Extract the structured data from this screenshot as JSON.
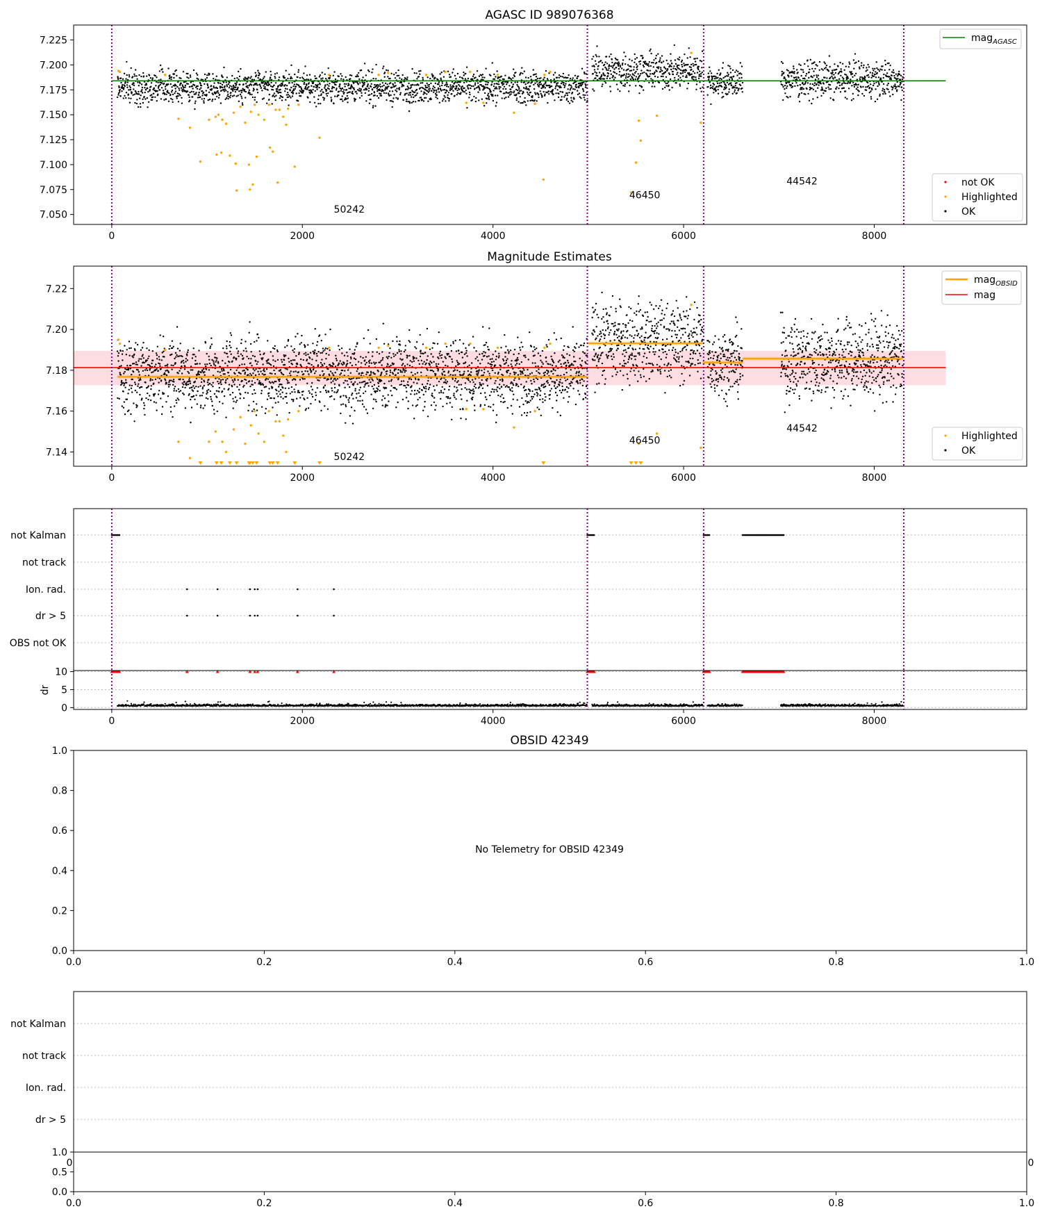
{
  "colors": {
    "ok": "#000000",
    "highlighted": "#ffa500",
    "not_ok": "#ff0000",
    "agasc_line": "#008000",
    "mag_line": "#ff0000",
    "obsid_line": "#ffa500",
    "band": "#ffc0cb",
    "vline": "#800080",
    "grid": "#bbbbbb"
  },
  "chart_data": [
    {
      "id": "agasc",
      "type": "scatter",
      "title": "AGASC ID 989076368",
      "xlim": [
        -400,
        9600
      ],
      "ylim": [
        7.04,
        7.24
      ],
      "xticks": [
        0,
        2000,
        4000,
        6000,
        8000
      ],
      "yticks": [
        7.05,
        7.075,
        7.1,
        7.125,
        7.15,
        7.175,
        7.2,
        7.225
      ],
      "ytick_labels": [
        "7.050",
        "7.075",
        "7.100",
        "7.125",
        "7.150",
        "7.175",
        "7.200",
        "7.225"
      ],
      "obsid_boundaries": [
        0,
        4990,
        6210,
        8310
      ],
      "obsid_labels": [
        {
          "text": "50242",
          "x": 2330,
          "y": 7.052
        },
        {
          "text": "46450",
          "x": 5430,
          "y": 7.066
        },
        {
          "text": "44542",
          "x": 7080,
          "y": 7.08
        }
      ],
      "mag_agasc": {
        "value": 7.184,
        "x": [
          0,
          8750
        ]
      },
      "series": [
        {
          "name": "OK",
          "segments": [
            {
              "x": [
                60,
                4990
              ],
              "center": 7.178,
              "spread": 0.008
            },
            {
              "x": [
                5040,
                6200
              ],
              "center": 7.194,
              "spread": 0.009
            },
            {
              "x": [
                6250,
                6620
              ],
              "center": 7.183,
              "spread": 0.008
            },
            {
              "x": [
                7020,
                8300
              ],
              "center": 7.185,
              "spread": 0.009
            }
          ]
        },
        {
          "name": "Highlighted",
          "points": [
            [
              70,
              7.194
            ],
            [
              85,
              7.193
            ],
            [
              560,
              7.19
            ],
            [
              700,
              7.146
            ],
            [
              820,
              7.137
            ],
            [
              930,
              7.103
            ],
            [
              1020,
              7.145
            ],
            [
              1090,
              7.148
            ],
            [
              1100,
              7.11
            ],
            [
              1120,
              7.15
            ],
            [
              1150,
              7.112
            ],
            [
              1160,
              7.145
            ],
            [
              1200,
              7.141
            ],
            [
              1240,
              7.109
            ],
            [
              1280,
              7.152
            ],
            [
              1300,
              7.101
            ],
            [
              1310,
              7.074
            ],
            [
              1350,
              7.158
            ],
            [
              1400,
              7.142
            ],
            [
              1440,
              7.1
            ],
            [
              1450,
              7.075
            ],
            [
              1460,
              7.153
            ],
            [
              1480,
              7.08
            ],
            [
              1500,
              7.16
            ],
            [
              1520,
              7.108
            ],
            [
              1540,
              7.15
            ],
            [
              1600,
              7.145
            ],
            [
              1650,
              7.16
            ],
            [
              1660,
              7.117
            ],
            [
              1690,
              7.113
            ],
            [
              1720,
              7.155
            ],
            [
              1740,
              7.082
            ],
            [
              1760,
              7.155
            ],
            [
              1800,
              7.148
            ],
            [
              1830,
              7.14
            ],
            [
              1850,
              7.156
            ],
            [
              1920,
              7.098
            ],
            [
              1960,
              7.16
            ],
            [
              2180,
              7.127
            ],
            [
              2280,
              7.19
            ],
            [
              2800,
              7.19
            ],
            [
              2900,
              7.192
            ],
            [
              3300,
              7.19
            ],
            [
              3500,
              7.193
            ],
            [
              3720,
              7.162
            ],
            [
              3760,
              7.193
            ],
            [
              3900,
              7.162
            ],
            [
              4050,
              7.19
            ],
            [
              4220,
              7.152
            ],
            [
              4440,
              7.161
            ],
            [
              4530,
              7.085
            ],
            [
              4540,
              7.19
            ],
            [
              4600,
              7.193
            ],
            [
              5450,
              7.072
            ],
            [
              5500,
              7.102
            ],
            [
              5530,
              7.144
            ],
            [
              5550,
              7.124
            ],
            [
              5720,
              7.149
            ],
            [
              6080,
              7.212
            ],
            [
              6180,
              7.142
            ]
          ]
        },
        {
          "name": "not OK",
          "points": []
        }
      ],
      "legend_lines": [
        {
          "name": "mag_AGASC",
          "label_main": "mag",
          "label_sub": "AGASC",
          "color": "#008000"
        }
      ],
      "legend_markers": [
        "not OK",
        "Highlighted",
        "OK"
      ]
    },
    {
      "id": "estimates",
      "type": "scatter",
      "title": "Magnitude Estimates",
      "xlim": [
        -400,
        9600
      ],
      "ylim": [
        7.133,
        7.231
      ],
      "xticks": [
        0,
        2000,
        4000,
        6000,
        8000
      ],
      "yticks": [
        7.14,
        7.16,
        7.18,
        7.2,
        7.22
      ],
      "ytick_labels": [
        "7.14",
        "7.16",
        "7.18",
        "7.20",
        "7.22"
      ],
      "obsid_boundaries": [
        0,
        4990,
        6210,
        8310
      ],
      "obsid_labels": [
        {
          "text": "50242",
          "x": 2330,
          "y": 7.136
        },
        {
          "text": "46450",
          "x": 5430,
          "y": 7.144
        },
        {
          "text": "44542",
          "x": 7080,
          "y": 7.15
        }
      ],
      "mag": {
        "value": 7.1813,
        "band": [
          7.1727,
          7.1895
        ],
        "x": [
          -400,
          8750
        ]
      },
      "mag_obsid": [
        {
          "x": [
            60,
            4990
          ],
          "value": 7.1768,
          "band": [
            7.1758,
            7.1778
          ]
        },
        {
          "x": [
            4990,
            6200
          ],
          "value": 7.1932,
          "band": [
            7.192,
            7.1944
          ]
        },
        {
          "x": [
            6200,
            6620
          ],
          "value": 7.1838,
          "band": [
            7.183,
            7.1846
          ]
        },
        {
          "x": [
            6620,
            8300
          ],
          "value": 7.1857,
          "band": [
            7.1848,
            7.1866
          ]
        }
      ],
      "series": [
        {
          "name": "OK",
          "segments": [
            {
              "x": [
                60,
                4990
              ],
              "center": 7.178,
              "spread": 0.0085
            },
            {
              "x": [
                5040,
                6200
              ],
              "center": 7.194,
              "spread": 0.0095
            },
            {
              "x": [
                6250,
                6620
              ],
              "center": 7.184,
              "spread": 0.008
            },
            {
              "x": [
                7020,
                8300
              ],
              "center": 7.185,
              "spread": 0.0095
            }
          ]
        },
        {
          "name": "Highlighted",
          "points": [
            [
              70,
              7.195
            ],
            [
              85,
              7.193
            ],
            [
              560,
              7.19
            ],
            [
              700,
              7.145
            ],
            [
              820,
              7.137
            ],
            [
              1020,
              7.145
            ],
            [
              1090,
              7.15
            ],
            [
              1160,
              7.145
            ],
            [
              1200,
              7.14
            ],
            [
              1280,
              7.151
            ],
            [
              1350,
              7.157
            ],
            [
              1400,
              7.144
            ],
            [
              1460,
              7.153
            ],
            [
              1500,
              7.16
            ],
            [
              1540,
              7.149
            ],
            [
              1600,
              7.145
            ],
            [
              1650,
              7.16
            ],
            [
              1720,
              7.155
            ],
            [
              1760,
              7.155
            ],
            [
              1800,
              7.148
            ],
            [
              1830,
              7.14
            ],
            [
              1850,
              7.156
            ],
            [
              1960,
              7.16
            ],
            [
              2280,
              7.191
            ],
            [
              2800,
              7.191
            ],
            [
              2900,
              7.192
            ],
            [
              3300,
              7.191
            ],
            [
              3500,
              7.193
            ],
            [
              3720,
              7.161
            ],
            [
              3760,
              7.193
            ],
            [
              3900,
              7.161
            ],
            [
              4050,
              7.191
            ],
            [
              4220,
              7.152
            ],
            [
              4440,
              7.16
            ],
            [
              4540,
              7.191
            ],
            [
              4600,
              7.193
            ],
            [
              5530,
              7.144
            ],
            [
              5720,
              7.149
            ],
            [
              6080,
              7.212
            ],
            [
              6180,
              7.142
            ]
          ]
        },
        {
          "name": "Highlighted-below-range",
          "markers": "down-triangle",
          "x": [
            930,
            1100,
            1150,
            1240,
            1310,
            1440,
            1450,
            1480,
            1520,
            1660,
            1690,
            1740,
            1920,
            2180,
            4530,
            5450,
            5500,
            5550
          ]
        }
      ],
      "legend_lines": [
        {
          "name": "mag_OBSID",
          "label_main": "mag",
          "label_sub": "OBSID",
          "color": "#ffa500"
        },
        {
          "name": "mag",
          "label_main": "mag",
          "label_sub": "",
          "color": "#ff0000"
        }
      ],
      "legend_markers": [
        "Highlighted",
        "OK"
      ]
    },
    {
      "id": "flags",
      "type": "scatter",
      "xlim": [
        -400,
        9600
      ],
      "categories": [
        "not Kalman",
        "not track",
        "Ion. rad.",
        "dr > 5",
        "OBS not OK"
      ],
      "obsid_boundaries": [
        0,
        4990,
        6210,
        8310
      ],
      "flag_ranges": {
        "not Kalman": [
          [
            0,
            80
          ],
          [
            4990,
            5060
          ],
          [
            6210,
            6270
          ],
          [
            6620,
            7050
          ]
        ],
        "not track": [],
        "Ion. rad.": [
          [
            790,
            790
          ],
          [
            1110,
            1110
          ],
          [
            1450,
            1450
          ],
          [
            1500,
            1500
          ],
          [
            1530,
            1530
          ],
          [
            1950,
            1950
          ],
          [
            2330,
            2330
          ]
        ],
        "dr > 5": [
          [
            790,
            790
          ],
          [
            1110,
            1110
          ],
          [
            1450,
            1450
          ],
          [
            1500,
            1500
          ],
          [
            1530,
            1530
          ],
          [
            1950,
            1950
          ],
          [
            2330,
            2330
          ]
        ],
        "OBS not OK": []
      }
    },
    {
      "id": "dr",
      "type": "scatter",
      "ylabel": "dr",
      "xlim": [
        -400,
        9600
      ],
      "ylim": [
        -0.5,
        10.3
      ],
      "xticks": [
        0,
        2000,
        4000,
        6000,
        8000
      ],
      "yticks": [
        0,
        5,
        10
      ],
      "ytick_labels": [
        "0",
        "5",
        "10"
      ],
      "obsid_boundaries": [
        0,
        4990,
        6210,
        8310
      ],
      "ok_segments": [
        [
          60,
          4990
        ],
        [
          5040,
          6200
        ],
        [
          6250,
          6620
        ],
        [
          7020,
          8300
        ]
      ],
      "ok_median": 0.4,
      "clipped_red_x_ranges": [
        [
          0,
          80
        ],
        [
          4990,
          5060
        ],
        [
          6210,
          6270
        ],
        [
          6620,
          7050
        ]
      ],
      "clipped_red_points": [
        790,
        1110,
        1450,
        1500,
        1530,
        1950,
        2330
      ],
      "clipped_value": 10
    }
  ],
  "obsid_panel": {
    "title": "OBSID 42349",
    "message": "No Telemetry for OBSID 42349",
    "xticks": [
      "0.0",
      "0.2",
      "0.4",
      "0.6",
      "0.8",
      "1.0"
    ],
    "yticks": [
      "0.0",
      "0.2",
      "0.4",
      "0.6",
      "0.8",
      "1.0"
    ]
  },
  "obsid_flags_panel": {
    "categories": [
      "not Kalman",
      "not track",
      "Ion. rad.",
      "dr > 5"
    ],
    "partial_tick_left": "0",
    "partial_tick_right": "0"
  },
  "obsid_dr_panel": {
    "yticks": [
      "0.0",
      "0.5",
      "1.0"
    ],
    "xticks": [
      "0.0",
      "0.2",
      "0.4",
      "0.6",
      "0.8",
      "1.0"
    ]
  }
}
